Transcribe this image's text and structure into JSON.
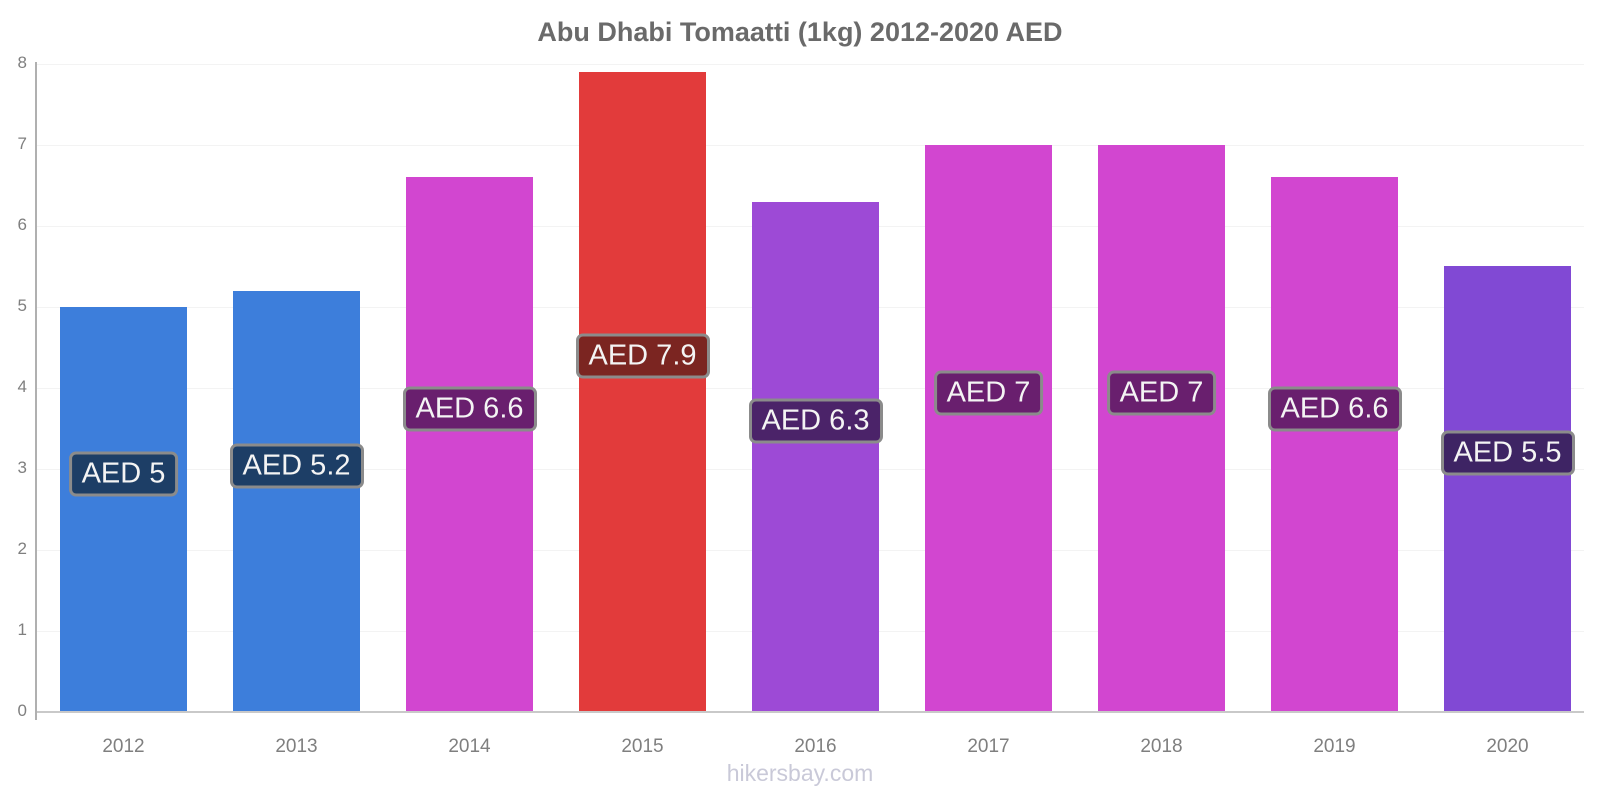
{
  "title": "Abu Dhabi Tomaatti (1kg) 2012-2020 AED",
  "footer": "hikersbay.com",
  "colors": {
    "title_text": "#6a6a6a",
    "axis_text": "#7f7f7f",
    "grid": "#f3f3f3",
    "axis_line": "#b0b0b0",
    "axis_baseline": "#c9c9c9",
    "label_border": "#8b8b8b",
    "label_text": "#f4f4f4",
    "footer_text": "#c9c9d8",
    "background": "#ffffff"
  },
  "chart_data": {
    "type": "bar",
    "title": "Abu Dhabi Tomaatti (1kg) 2012-2020 AED",
    "xlabel": "",
    "ylabel": "",
    "currency": "AED",
    "categories": [
      "2012",
      "2013",
      "2014",
      "2015",
      "2016",
      "2017",
      "2018",
      "2019",
      "2020"
    ],
    "values": [
      5,
      5.2,
      6.6,
      7.9,
      6.3,
      7,
      7,
      6.6,
      5.5
    ],
    "bar_labels": [
      "AED 5",
      "AED 5.2",
      "AED 6.6",
      "AED 7.9",
      "AED 6.3",
      "AED 7",
      "AED 7",
      "AED 6.6",
      "AED 5.5"
    ],
    "bar_colors": [
      "#3d7edb",
      "#3d7edb",
      "#d246d0",
      "#e23b3b",
      "#9d4ad6",
      "#d246d0",
      "#d246d0",
      "#d246d0",
      "#8149d4"
    ],
    "label_colors": [
      "#1d3e66",
      "#1d3e66",
      "#691f6e",
      "#7b2521",
      "#4b2369",
      "#691f6e",
      "#691f6e",
      "#691f6e",
      "#3e2464"
    ],
    "ylim": [
      0,
      8
    ],
    "yticks": [
      0,
      1,
      2,
      3,
      4,
      5,
      6,
      7,
      8
    ],
    "grid": true,
    "legend": "none"
  }
}
